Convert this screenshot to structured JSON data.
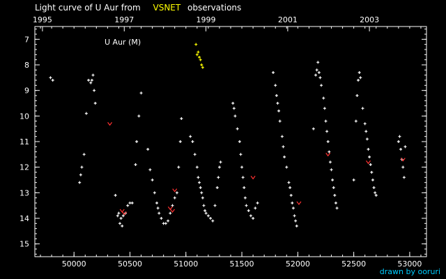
{
  "title": {
    "prefix": "Light curve of U Aur from",
    "source": "VSNET",
    "suffix": "observations"
  },
  "credit": "drawn by ooruri",
  "colors": {
    "background": "#000000",
    "axis": "#ffffff",
    "observation": "#ffffff",
    "fainter_than": "#ff3030",
    "accent": "#ffff00",
    "credit": "#00ccff"
  },
  "chart_data": {
    "type": "scatter",
    "legend": "U Aur (M)",
    "xlim": [
      49650,
      53150
    ],
    "ylim": [
      15.5,
      6.5
    ],
    "y_inverted": true,
    "x_ticks": [
      {
        "v": 50000,
        "label": "50000"
      },
      {
        "v": 50500,
        "label": "50500"
      },
      {
        "v": 51000,
        "label": "51000"
      },
      {
        "v": 51500,
        "label": "51500"
      },
      {
        "v": 52000,
        "label": "52000"
      },
      {
        "v": 52500,
        "label": "52500"
      },
      {
        "v": 53000,
        "label": "53000"
      }
    ],
    "x_minor_step": 100,
    "year_ticks": [
      {
        "v": 49718,
        "label": "1995"
      },
      {
        "v": 50449,
        "label": "1997"
      },
      {
        "v": 51179,
        "label": "1999"
      },
      {
        "v": 51910,
        "label": "2001"
      },
      {
        "v": 52640,
        "label": "2003"
      }
    ],
    "y_ticks": [
      {
        "v": 7,
        "label": "7"
      },
      {
        "v": 8,
        "label": "8"
      },
      {
        "v": 9,
        "label": "9"
      },
      {
        "v": 10,
        "label": "10"
      },
      {
        "v": 11,
        "label": "11"
      },
      {
        "v": 12,
        "label": "12"
      },
      {
        "v": 13,
        "label": "13"
      },
      {
        "v": 14,
        "label": "14"
      },
      {
        "v": 15,
        "label": "15"
      }
    ],
    "y_minor_step": 0.2,
    "grid": false,
    "series": [
      {
        "kind": "observation",
        "points": [
          [
            49790,
            8.5
          ],
          [
            49810,
            8.6
          ],
          [
            50050,
            12.6
          ],
          [
            50060,
            12.3
          ],
          [
            50070,
            12.0
          ],
          [
            50090,
            11.5
          ],
          [
            50110,
            9.9
          ],
          [
            50130,
            8.6
          ],
          [
            50150,
            8.7
          ],
          [
            50160,
            8.6
          ],
          [
            50170,
            8.4
          ],
          [
            50180,
            9.0
          ],
          [
            50190,
            9.5
          ],
          [
            50370,
            13.1
          ],
          [
            50390,
            13.9
          ],
          [
            50400,
            13.8
          ],
          [
            50410,
            14.2
          ],
          [
            50420,
            14.0
          ],
          [
            50430,
            14.3
          ],
          [
            50440,
            13.9
          ],
          [
            50460,
            13.8
          ],
          [
            50480,
            13.5
          ],
          [
            50500,
            13.4
          ],
          [
            50520,
            13.4
          ],
          [
            50550,
            11.9
          ],
          [
            50560,
            11.0
          ],
          [
            50580,
            10.0
          ],
          [
            50600,
            9.1
          ],
          [
            50660,
            11.3
          ],
          [
            50680,
            12.1
          ],
          [
            50700,
            12.5
          ],
          [
            50720,
            13.0
          ],
          [
            50740,
            13.4
          ],
          [
            50750,
            13.6
          ],
          [
            50760,
            13.8
          ],
          [
            50780,
            14.0
          ],
          [
            50800,
            14.2
          ],
          [
            50820,
            14.2
          ],
          [
            50840,
            14.1
          ],
          [
            50860,
            13.8
          ],
          [
            50880,
            13.5
          ],
          [
            50900,
            13.2
          ],
          [
            50920,
            13.0
          ],
          [
            50935,
            12.0
          ],
          [
            50950,
            11.0
          ],
          [
            50960,
            10.1
          ],
          [
            51040,
            10.8
          ],
          [
            51060,
            11.0
          ],
          [
            51080,
            11.5
          ],
          [
            51100,
            12.0
          ],
          [
            51110,
            12.4
          ],
          [
            51120,
            12.6
          ],
          [
            51130,
            12.8
          ],
          [
            51140,
            13.0
          ],
          [
            51150,
            13.2
          ],
          [
            51160,
            13.5
          ],
          [
            51170,
            13.7
          ],
          [
            51180,
            13.8
          ],
          [
            51200,
            13.9
          ],
          [
            51220,
            14.0
          ],
          [
            51240,
            14.1
          ],
          [
            51260,
            13.5
          ],
          [
            51280,
            12.8
          ],
          [
            51290,
            12.4
          ],
          [
            51300,
            12.0
          ],
          [
            51310,
            11.8
          ],
          [
            51420,
            9.5
          ],
          [
            51430,
            9.7
          ],
          [
            51440,
            10.0
          ],
          [
            51460,
            10.5
          ],
          [
            51480,
            11.0
          ],
          [
            51490,
            11.5
          ],
          [
            51500,
            12.0
          ],
          [
            51510,
            12.4
          ],
          [
            51520,
            12.8
          ],
          [
            51530,
            13.2
          ],
          [
            51540,
            13.5
          ],
          [
            51560,
            13.7
          ],
          [
            51580,
            13.9
          ],
          [
            51600,
            14.0
          ],
          [
            51620,
            13.6
          ],
          [
            51640,
            13.4
          ],
          [
            51780,
            8.3
          ],
          [
            51800,
            8.8
          ],
          [
            51810,
            9.2
          ],
          [
            51820,
            9.5
          ],
          [
            51830,
            9.8
          ],
          [
            51840,
            10.2
          ],
          [
            51860,
            10.8
          ],
          [
            51870,
            11.2
          ],
          [
            51880,
            11.6
          ],
          [
            51900,
            12.0
          ],
          [
            51920,
            12.6
          ],
          [
            51930,
            12.8
          ],
          [
            51940,
            13.1
          ],
          [
            51950,
            13.4
          ],
          [
            51960,
            13.6
          ],
          [
            51970,
            13.9
          ],
          [
            51980,
            14.1
          ],
          [
            51990,
            14.3
          ],
          [
            52140,
            10.5
          ],
          [
            52160,
            8.4
          ],
          [
            52170,
            8.2
          ],
          [
            52180,
            7.9
          ],
          [
            52190,
            8.3
          ],
          [
            52200,
            8.5
          ],
          [
            52210,
            8.8
          ],
          [
            52230,
            9.3
          ],
          [
            52240,
            9.7
          ],
          [
            52250,
            10.2
          ],
          [
            52260,
            10.6
          ],
          [
            52270,
            11.0
          ],
          [
            52280,
            11.4
          ],
          [
            52290,
            11.8
          ],
          [
            52300,
            12.1
          ],
          [
            52310,
            12.5
          ],
          [
            52320,
            12.8
          ],
          [
            52330,
            13.1
          ],
          [
            52340,
            13.4
          ],
          [
            52350,
            13.6
          ],
          [
            52500,
            12.5
          ],
          [
            52520,
            10.2
          ],
          [
            52530,
            9.2
          ],
          [
            52540,
            8.6
          ],
          [
            52550,
            8.3
          ],
          [
            52560,
            8.5
          ],
          [
            52580,
            9.7
          ],
          [
            52600,
            10.3
          ],
          [
            52610,
            10.6
          ],
          [
            52620,
            10.9
          ],
          [
            52630,
            11.3
          ],
          [
            52640,
            11.6
          ],
          [
            52650,
            11.9
          ],
          [
            52660,
            12.2
          ],
          [
            52670,
            12.5
          ],
          [
            52680,
            12.8
          ],
          [
            52690,
            13.0
          ],
          [
            52700,
            13.1
          ],
          [
            52900,
            11.0
          ],
          [
            52910,
            10.8
          ],
          [
            52920,
            11.3
          ],
          [
            52930,
            11.7
          ],
          [
            52940,
            12.0
          ],
          [
            52950,
            12.4
          ],
          [
            52960,
            11.2
          ]
        ]
      },
      {
        "kind": "fainter_than",
        "points": [
          [
            50320,
            10.3
          ],
          [
            50430,
            13.7
          ],
          [
            50450,
            13.8
          ],
          [
            50860,
            13.6
          ],
          [
            50880,
            13.7
          ],
          [
            50900,
            12.9
          ],
          [
            51600,
            12.4
          ],
          [
            52010,
            13.4
          ],
          [
            52270,
            11.5
          ],
          [
            52630,
            11.8
          ],
          [
            52940,
            11.7
          ]
        ]
      },
      {
        "kind": "accent",
        "points": [
          [
            51090,
            7.2
          ],
          [
            51100,
            7.6
          ],
          [
            51110,
            7.5
          ],
          [
            51120,
            7.7
          ],
          [
            51130,
            7.8
          ],
          [
            51140,
            8.0
          ],
          [
            51150,
            8.1
          ]
        ]
      }
    ]
  }
}
